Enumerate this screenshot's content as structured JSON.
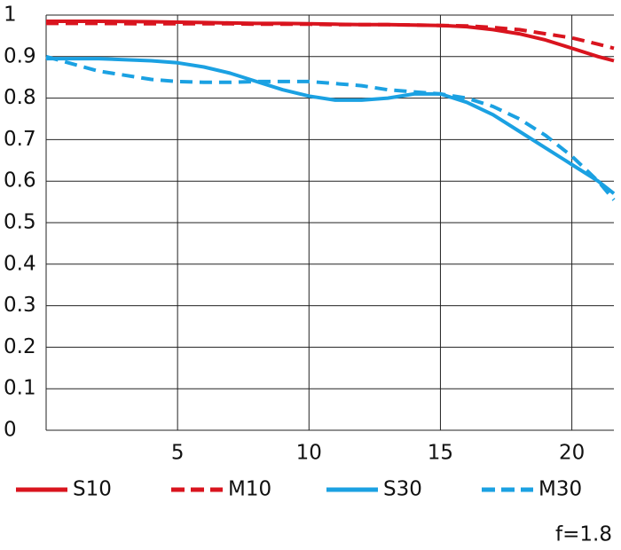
{
  "chart_data": {
    "type": "line",
    "x": [
      0,
      2,
      4,
      5,
      6,
      7,
      8,
      9,
      10,
      11,
      12,
      13,
      14,
      15,
      16,
      17,
      18,
      19,
      20,
      21,
      21.6
    ],
    "series": [
      {
        "name": "S10",
        "color": "#d9141e",
        "dashed": false,
        "values": [
          0.985,
          0.985,
          0.984,
          0.983,
          0.982,
          0.981,
          0.98,
          0.98,
          0.979,
          0.978,
          0.977,
          0.977,
          0.976,
          0.975,
          0.972,
          0.965,
          0.955,
          0.94,
          0.92,
          0.9,
          0.89
        ]
      },
      {
        "name": "M10",
        "color": "#d9141e",
        "dashed": true,
        "values": [
          0.98,
          0.98,
          0.979,
          0.979,
          0.979,
          0.979,
          0.978,
          0.978,
          0.978,
          0.977,
          0.977,
          0.977,
          0.976,
          0.975,
          0.974,
          0.97,
          0.965,
          0.955,
          0.945,
          0.93,
          0.92
        ]
      },
      {
        "name": "S30",
        "color": "#1ba1e2",
        "dashed": false,
        "values": [
          0.895,
          0.895,
          0.89,
          0.885,
          0.875,
          0.86,
          0.84,
          0.82,
          0.805,
          0.795,
          0.795,
          0.8,
          0.81,
          0.81,
          0.79,
          0.76,
          0.72,
          0.68,
          0.64,
          0.6,
          0.57
        ]
      },
      {
        "name": "M30",
        "color": "#1ba1e2",
        "dashed": true,
        "values": [
          0.9,
          0.865,
          0.845,
          0.84,
          0.838,
          0.838,
          0.84,
          0.84,
          0.84,
          0.835,
          0.83,
          0.82,
          0.815,
          0.81,
          0.8,
          0.78,
          0.75,
          0.71,
          0.66,
          0.6,
          0.555
        ]
      }
    ],
    "xlim": [
      0,
      21.6
    ],
    "xticks": [
      5,
      10,
      15,
      20
    ],
    "ylim": [
      0,
      1
    ],
    "yticks": [
      0,
      0.1,
      0.2,
      0.3,
      0.4,
      0.5,
      0.6,
      0.7,
      0.8,
      0.9,
      1
    ],
    "grid": true,
    "legend": "bottom",
    "annotation": "f=1.8"
  }
}
